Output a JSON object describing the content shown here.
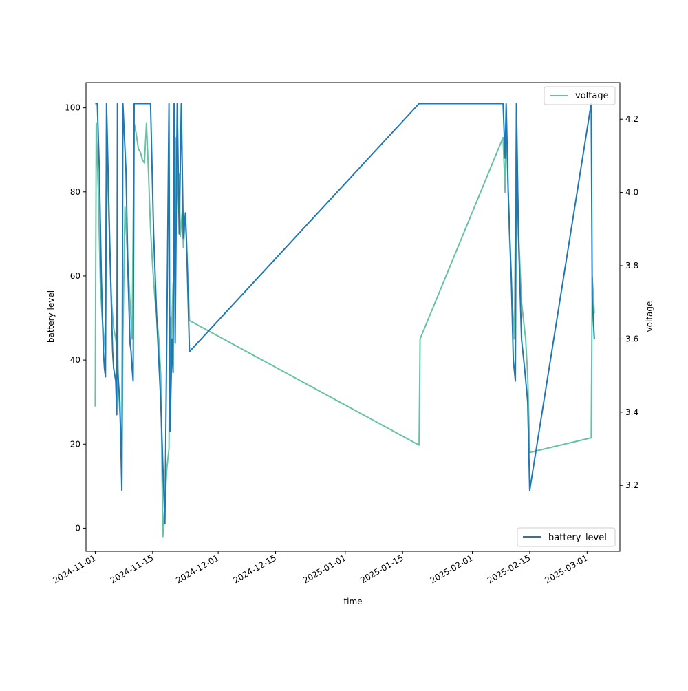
{
  "chart_data": {
    "type": "line",
    "title": "",
    "xlabel": "time",
    "ylabel_left": "battery level",
    "ylabel_right": "voltage",
    "x_tick_labels": [
      "2024-11-01",
      "2024-11-15",
      "2024-12-01",
      "2024-12-15",
      "2025-01-01",
      "2025-01-15",
      "2025-02-01",
      "2025-02-15",
      "2025-03-01"
    ],
    "y_left_ticks": [
      0,
      20,
      40,
      60,
      80,
      100
    ],
    "y_left_lim": [
      -5.5,
      106
    ],
    "y_right_ticks": [
      3.2,
      3.4,
      3.6,
      3.8,
      4.0,
      4.2
    ],
    "y_right_lim": [
      3.02,
      4.3
    ],
    "x_lim": [
      "2024-10-29T18:00",
      "2025-03-09"
    ],
    "legend_left_placement": "lower-right",
    "legend_right_placement": "upper-right",
    "grid": false,
    "series": [
      {
        "name": "battery_level",
        "axis": "left",
        "color": "#1f77b4",
        "points": [
          [
            "2024-11-01T00:00",
            101
          ],
          [
            "2024-11-01T12:00",
            101
          ],
          [
            "2024-11-02T00:00",
            85
          ],
          [
            "2024-11-02T12:00",
            60
          ],
          [
            "2024-11-03T00:00",
            42
          ],
          [
            "2024-11-03T06:00",
            38
          ],
          [
            "2024-11-03T12:00",
            36
          ],
          [
            "2024-11-03T18:00",
            101
          ],
          [
            "2024-11-04T06:00",
            80
          ],
          [
            "2024-11-04T18:00",
            60
          ],
          [
            "2024-11-05T06:00",
            42
          ],
          [
            "2024-11-05T12:00",
            38
          ],
          [
            "2024-11-06T00:00",
            35
          ],
          [
            "2024-11-06T06:00",
            27
          ],
          [
            "2024-11-06T10:00",
            101
          ],
          [
            "2024-11-06T12:00",
            37
          ],
          [
            "2024-11-07T00:00",
            30
          ],
          [
            "2024-11-07T06:00",
            20
          ],
          [
            "2024-11-07T12:00",
            9
          ],
          [
            "2024-11-07T18:00",
            101
          ],
          [
            "2024-11-08T12:00",
            85
          ],
          [
            "2024-11-09T00:00",
            60
          ],
          [
            "2024-11-09T12:00",
            44
          ],
          [
            "2024-11-09T18:00",
            42
          ],
          [
            "2024-11-10T00:00",
            38
          ],
          [
            "2024-11-10T06:00",
            35
          ],
          [
            "2024-11-10T12:00",
            101
          ],
          [
            "2024-11-14T12:00",
            101
          ],
          [
            "2024-11-15T06:00",
            70
          ],
          [
            "2024-11-16T00:00",
            50
          ],
          [
            "2024-11-16T12:00",
            40
          ],
          [
            "2024-11-17T00:00",
            30
          ],
          [
            "2024-11-17T12:00",
            15
          ],
          [
            "2024-11-18T00:00",
            1
          ],
          [
            "2024-11-18T12:00",
            50
          ],
          [
            "2024-11-19T00:00",
            101
          ],
          [
            "2024-11-19T06:00",
            23
          ],
          [
            "2024-11-19T18:00",
            45
          ],
          [
            "2024-11-20T00:00",
            37
          ],
          [
            "2024-11-20T06:00",
            101
          ],
          [
            "2024-11-20T12:00",
            44
          ],
          [
            "2024-11-21T00:00",
            101
          ],
          [
            "2024-11-21T12:00",
            70
          ],
          [
            "2024-11-22T00:00",
            101
          ],
          [
            "2024-11-22T12:00",
            69
          ],
          [
            "2024-11-23T00:00",
            75
          ],
          [
            "2024-11-23T06:00",
            69
          ],
          [
            "2024-11-24T00:00",
            42
          ],
          [
            "2025-01-19T00:00",
            101
          ],
          [
            "2025-02-08T12:00",
            101
          ],
          [
            "2025-02-09T00:00",
            88
          ],
          [
            "2025-02-09T06:00",
            101
          ],
          [
            "2025-02-09T18:00",
            80
          ],
          [
            "2025-02-10T12:00",
            60
          ],
          [
            "2025-02-11T00:00",
            40
          ],
          [
            "2025-02-11T12:00",
            35
          ],
          [
            "2025-02-11T18:00",
            101
          ],
          [
            "2025-02-12T06:00",
            70
          ],
          [
            "2025-02-13T00:00",
            45
          ],
          [
            "2025-02-13T18:00",
            38
          ],
          [
            "2025-02-14T12:00",
            30
          ],
          [
            "2025-02-15T00:00",
            9
          ],
          [
            "2025-03-02T00:00",
            101
          ],
          [
            "2025-03-02T06:00",
            55
          ],
          [
            "2025-03-02T18:00",
            45
          ]
        ]
      },
      {
        "name": "voltage",
        "axis": "right",
        "color": "#66c2a5",
        "points": [
          [
            "2024-11-01T00:00",
            3.415
          ],
          [
            "2024-11-01T06:00",
            4.19
          ],
          [
            "2024-11-01T18:00",
            4.0
          ],
          [
            "2024-11-02T06:00",
            3.75
          ],
          [
            "2024-11-02T18:00",
            3.65
          ],
          [
            "2024-11-03T12:00",
            3.56
          ],
          [
            "2024-11-03T18:00",
            4.17
          ],
          [
            "2024-11-04T06:00",
            3.95
          ],
          [
            "2024-11-05T00:00",
            3.7
          ],
          [
            "2024-11-05T12:00",
            3.63
          ],
          [
            "2024-11-06T00:00",
            3.6
          ],
          [
            "2024-11-06T06:00",
            3.58
          ],
          [
            "2024-11-06T10:00",
            3.57
          ],
          [
            "2024-11-06T18:00",
            3.45
          ],
          [
            "2024-11-07T06:00",
            3.35
          ],
          [
            "2024-11-07T12:00",
            3.21
          ],
          [
            "2024-11-07T18:00",
            3.6
          ],
          [
            "2024-11-08T06:00",
            3.96
          ],
          [
            "2024-11-08T18:00",
            3.85
          ],
          [
            "2024-11-09T12:00",
            3.7
          ],
          [
            "2024-11-10T00:00",
            3.6
          ],
          [
            "2024-11-10T12:00",
            4.19
          ],
          [
            "2024-11-11T00:00",
            4.16
          ],
          [
            "2024-11-11T12:00",
            4.12
          ],
          [
            "2024-11-12T00:00",
            4.11
          ],
          [
            "2024-11-12T12:00",
            4.09
          ],
          [
            "2024-11-13T00:00",
            4.08
          ],
          [
            "2024-11-13T12:00",
            4.19
          ],
          [
            "2024-11-14T00:00",
            4.05
          ],
          [
            "2024-11-14T12:00",
            3.9
          ],
          [
            "2024-11-15T00:00",
            3.8
          ],
          [
            "2024-11-15T12:00",
            3.72
          ],
          [
            "2024-11-16T00:00",
            3.66
          ],
          [
            "2024-11-16T12:00",
            3.6
          ],
          [
            "2024-11-17T00:00",
            3.5
          ],
          [
            "2024-11-17T12:00",
            3.06
          ],
          [
            "2024-11-18T12:00",
            3.25
          ],
          [
            "2024-11-19T00:00",
            3.3
          ],
          [
            "2024-11-19T06:00",
            3.66
          ],
          [
            "2024-11-19T12:00",
            3.5
          ],
          [
            "2024-11-19T18:00",
            3.66
          ],
          [
            "2024-11-20T00:00",
            3.75
          ],
          [
            "2024-11-20T06:00",
            3.78
          ],
          [
            "2024-11-20T12:00",
            3.9
          ],
          [
            "2024-11-20T18:00",
            4.15
          ],
          [
            "2024-11-21T06:00",
            3.95
          ],
          [
            "2024-11-21T12:00",
            4.05
          ],
          [
            "2024-11-21T18:00",
            3.88
          ],
          [
            "2024-11-22T06:00",
            3.95
          ],
          [
            "2024-11-22T12:00",
            3.85
          ],
          [
            "2024-11-23T00:00",
            3.93
          ],
          [
            "2024-11-23T12:00",
            3.8
          ],
          [
            "2024-11-24T00:00",
            3.65
          ],
          [
            "2025-01-19T00:00",
            3.31
          ],
          [
            "2025-01-19T06:00",
            3.6
          ],
          [
            "2025-02-08T12:00",
            4.15
          ],
          [
            "2025-02-09T00:00",
            4.0
          ],
          [
            "2025-02-09T06:00",
            4.2
          ],
          [
            "2025-02-10T00:00",
            3.9
          ],
          [
            "2025-02-10T18:00",
            3.7
          ],
          [
            "2025-02-11T06:00",
            3.6
          ],
          [
            "2025-02-11T18:00",
            4.2
          ],
          [
            "2025-02-12T06:00",
            3.9
          ],
          [
            "2025-02-13T00:00",
            3.7
          ],
          [
            "2025-02-14T00:00",
            3.6
          ],
          [
            "2025-02-14T12:00",
            3.5
          ],
          [
            "2025-02-15T00:00",
            3.29
          ],
          [
            "2025-03-02T00:00",
            3.33
          ],
          [
            "2025-03-02T06:00",
            3.77
          ],
          [
            "2025-03-02T18:00",
            3.67
          ]
        ]
      }
    ]
  }
}
